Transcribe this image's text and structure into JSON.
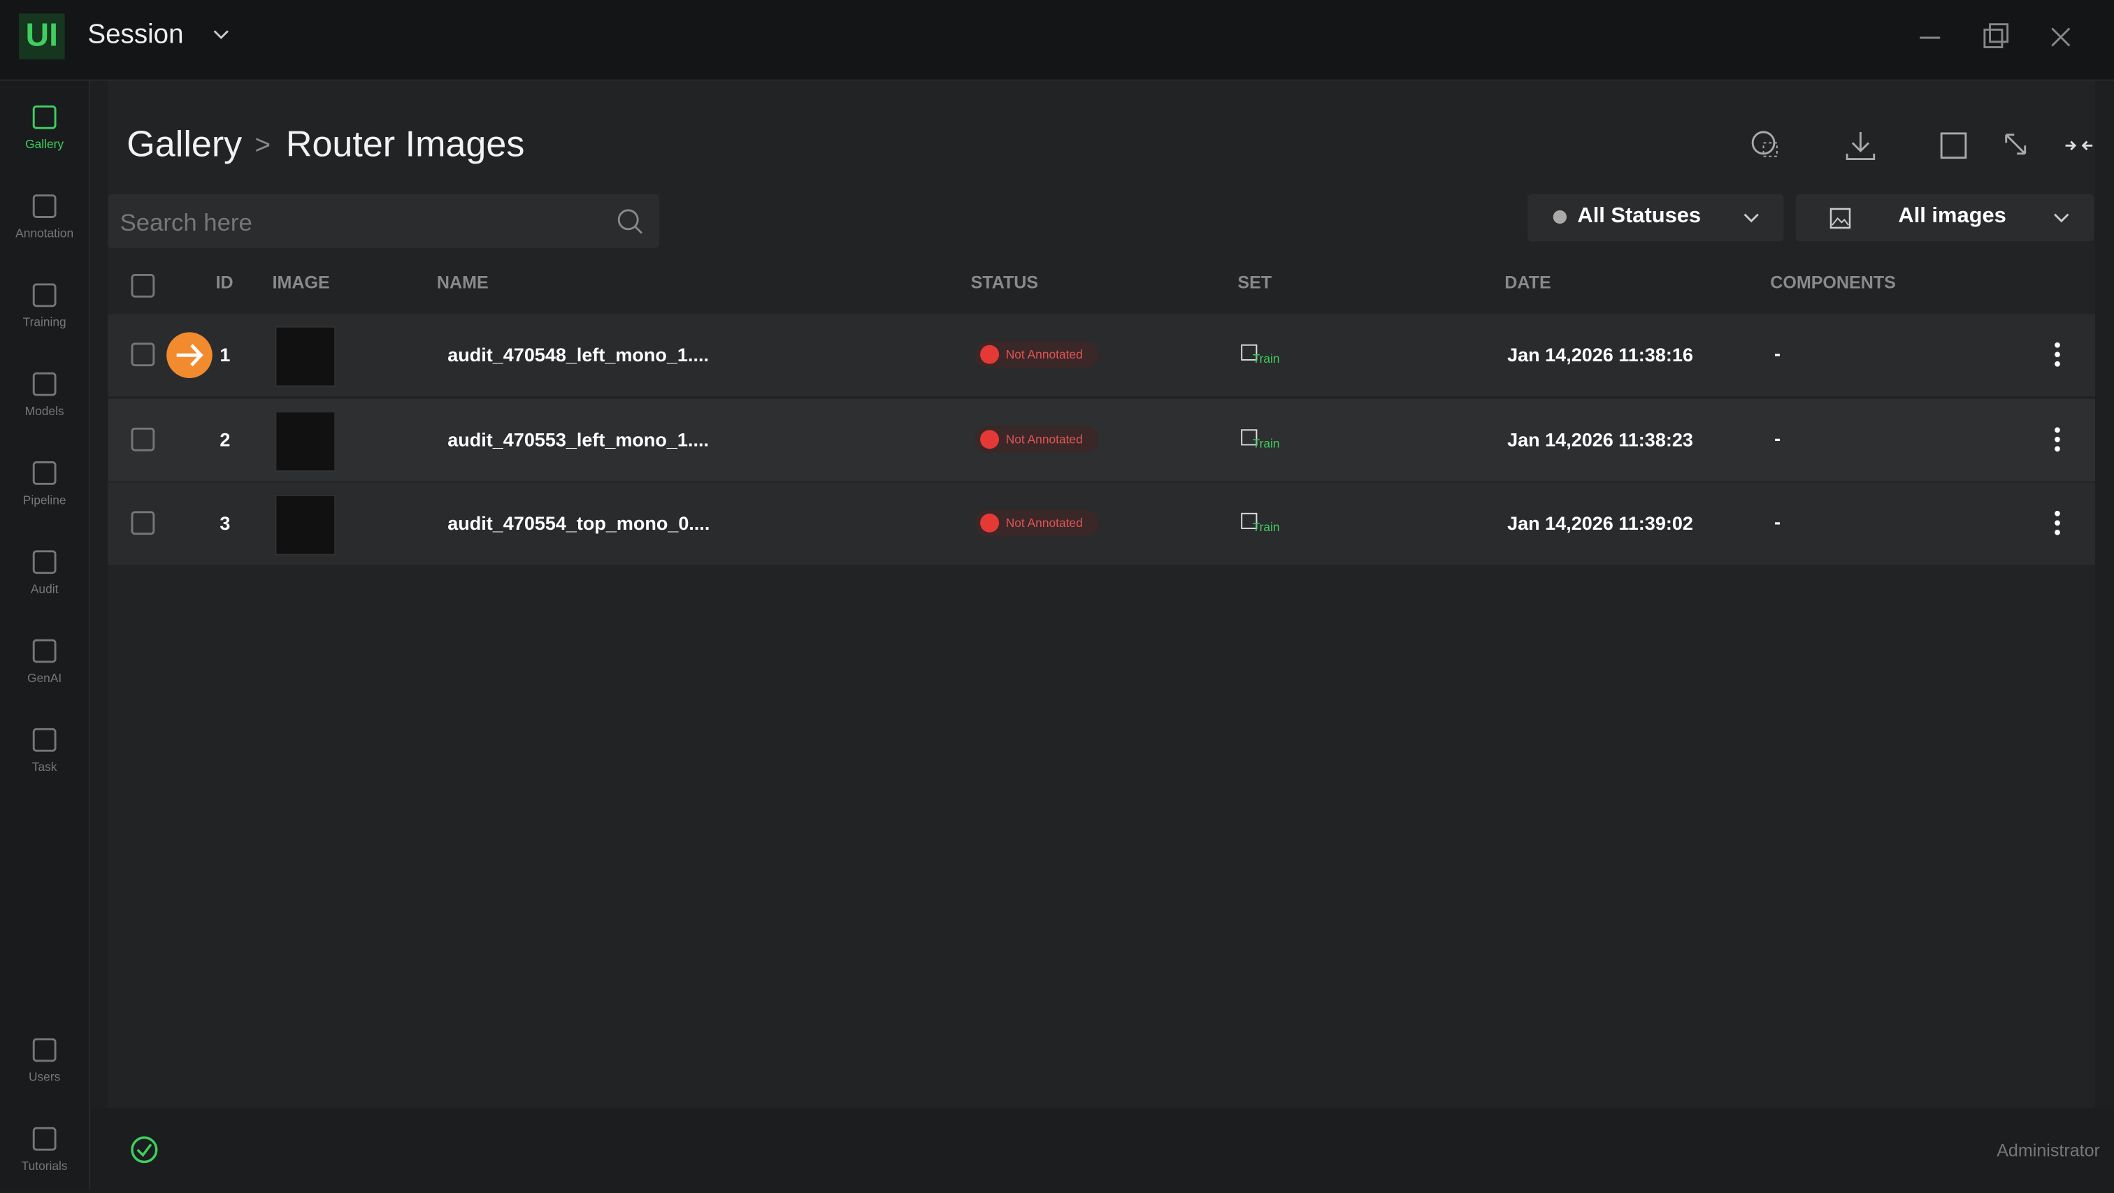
{
  "app": {
    "logo": "UI",
    "title": "Session"
  },
  "sidebar": {
    "top": [
      "Gallery",
      "Annotation",
      "Training",
      "Models",
      "Pipeline",
      "Audit",
      "GenAI",
      "Task"
    ],
    "bottom": [
      "Users",
      "Tutorials"
    ]
  },
  "breadcrumb": {
    "parent": "Gallery",
    "separator": ">",
    "current": "Router Images"
  },
  "search": {
    "placeholder": "Search here"
  },
  "filters": {
    "status": "All Statuses",
    "images": "All images"
  },
  "table": {
    "columns": [
      "ID",
      "IMAGE",
      "NAME",
      "STATUS",
      "SET",
      "DATE",
      "COMPONENTS"
    ],
    "rows": [
      {
        "id": 1,
        "name": "audit_470548_left_mono_1....",
        "status": "Not Annotated",
        "set": "Train",
        "date": "Jan 14,2026 11:38:16",
        "components": "-"
      },
      {
        "id": 2,
        "name": "audit_470553_left_mono_1....",
        "status": "Not Annotated",
        "set": "Train",
        "date": "Jan 14,2026 11:38:23",
        "components": "-"
      },
      {
        "id": 3,
        "name": "audit_470554_top_mono_0....",
        "status": "Not Annotated",
        "set": "Train",
        "date": "Jan 14,2026 11:39:02",
        "components": "-"
      }
    ]
  },
  "footer": {
    "user": "Administrator"
  }
}
